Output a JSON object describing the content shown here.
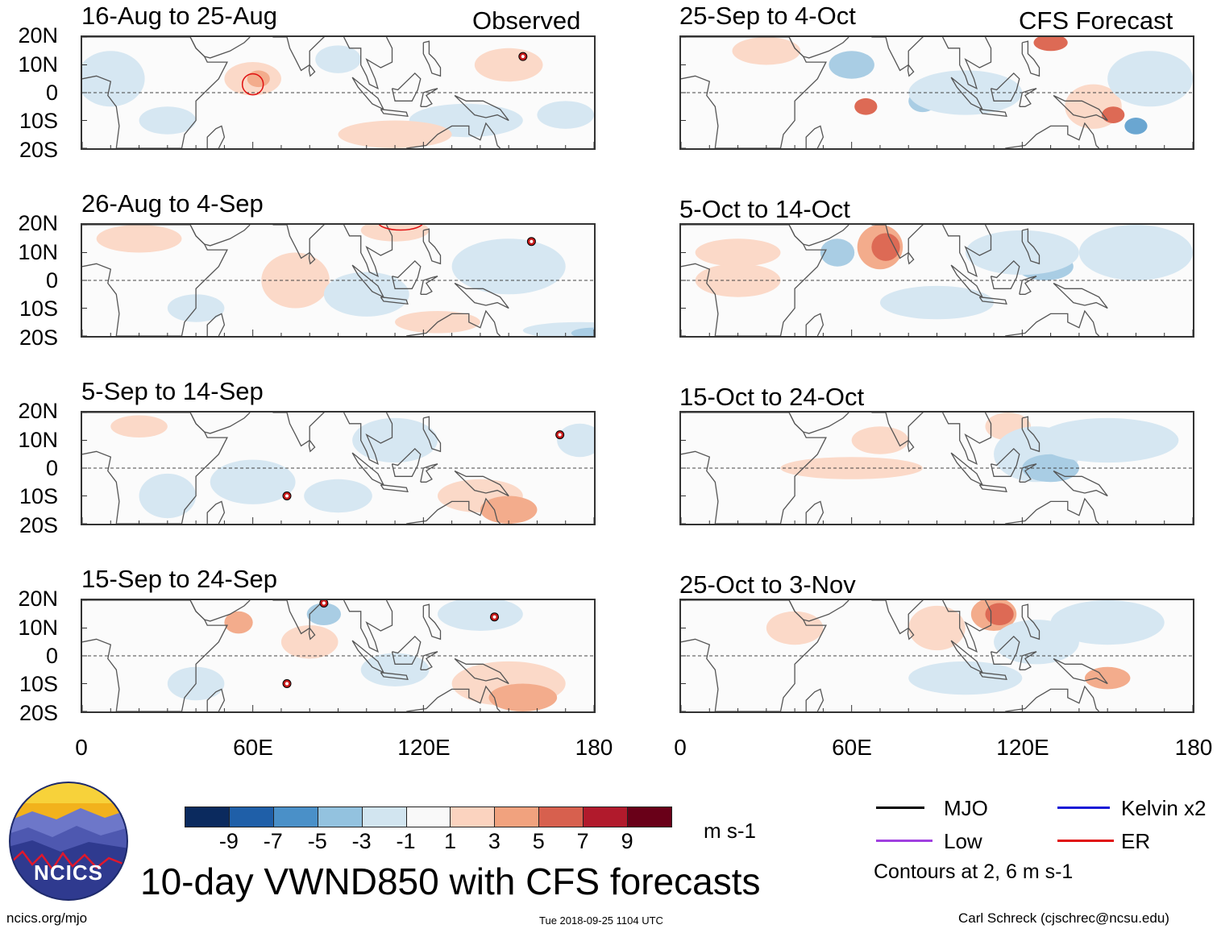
{
  "panels_left_header": "Observed",
  "panels_right_header": "CFS Forecast",
  "panels": [
    {
      "title": "16-Aug to 25-Aug",
      "storms": [
        {
          "lon": 155,
          "lat": 13
        }
      ]
    },
    {
      "title": "26-Aug to 4-Sep",
      "storms": [
        {
          "lon": 158,
          "lat": 14
        }
      ]
    },
    {
      "title": "5-Sep to 14-Sep",
      "storms": [
        {
          "lon": 168,
          "lat": 12
        },
        {
          "lon": 72,
          "lat": -10
        }
      ]
    },
    {
      "title": "15-Sep to 24-Sep",
      "storms": [
        {
          "lon": 85,
          "lat": 19
        },
        {
          "lon": 145,
          "lat": 14
        },
        {
          "lon": 72,
          "lat": -10
        }
      ]
    },
    {
      "title": "25-Sep to 4-Oct",
      "storms": []
    },
    {
      "title": "5-Oct to 14-Oct",
      "storms": []
    },
    {
      "title": "15-Oct to 24-Oct",
      "storms": []
    },
    {
      "title": "25-Oct to 3-Nov",
      "storms": []
    }
  ],
  "lat_labels": [
    "20N",
    "10N",
    "0",
    "10S",
    "20S"
  ],
  "lon_labels": [
    "0",
    "60E",
    "120E",
    "180"
  ],
  "colorbar": {
    "colors": [
      "#0b2a5e",
      "#1f5fa8",
      "#4a90c8",
      "#93c2df",
      "#d2e5f0",
      "#f9f9f9",
      "#fbd3bf",
      "#f1a27e",
      "#d7604e",
      "#b11a2c",
      "#690018"
    ],
    "labels": [
      "-9",
      "-7",
      "-5",
      "-3",
      "-1",
      "1",
      "3",
      "5",
      "7",
      "9"
    ],
    "units": "m s-1"
  },
  "legend": {
    "items": [
      {
        "label": "MJO",
        "color": "#000000"
      },
      {
        "label": "Kelvin x2",
        "color": "#1a1ad6"
      },
      {
        "label": "Low",
        "color": "#a040e0"
      },
      {
        "label": "ER",
        "color": "#e01010"
      }
    ],
    "contours_note": "Contours at 2, 6 m s-1"
  },
  "logo_text": "NCICS",
  "main_title": "10-day VWND850 with CFS forecasts",
  "footer": {
    "url": "ncics.org/mjo",
    "timestamp": "Tue 2018-09-25 1104 UTC",
    "author": "Carl Schreck (cjschrec@ncsu.edu)"
  }
}
